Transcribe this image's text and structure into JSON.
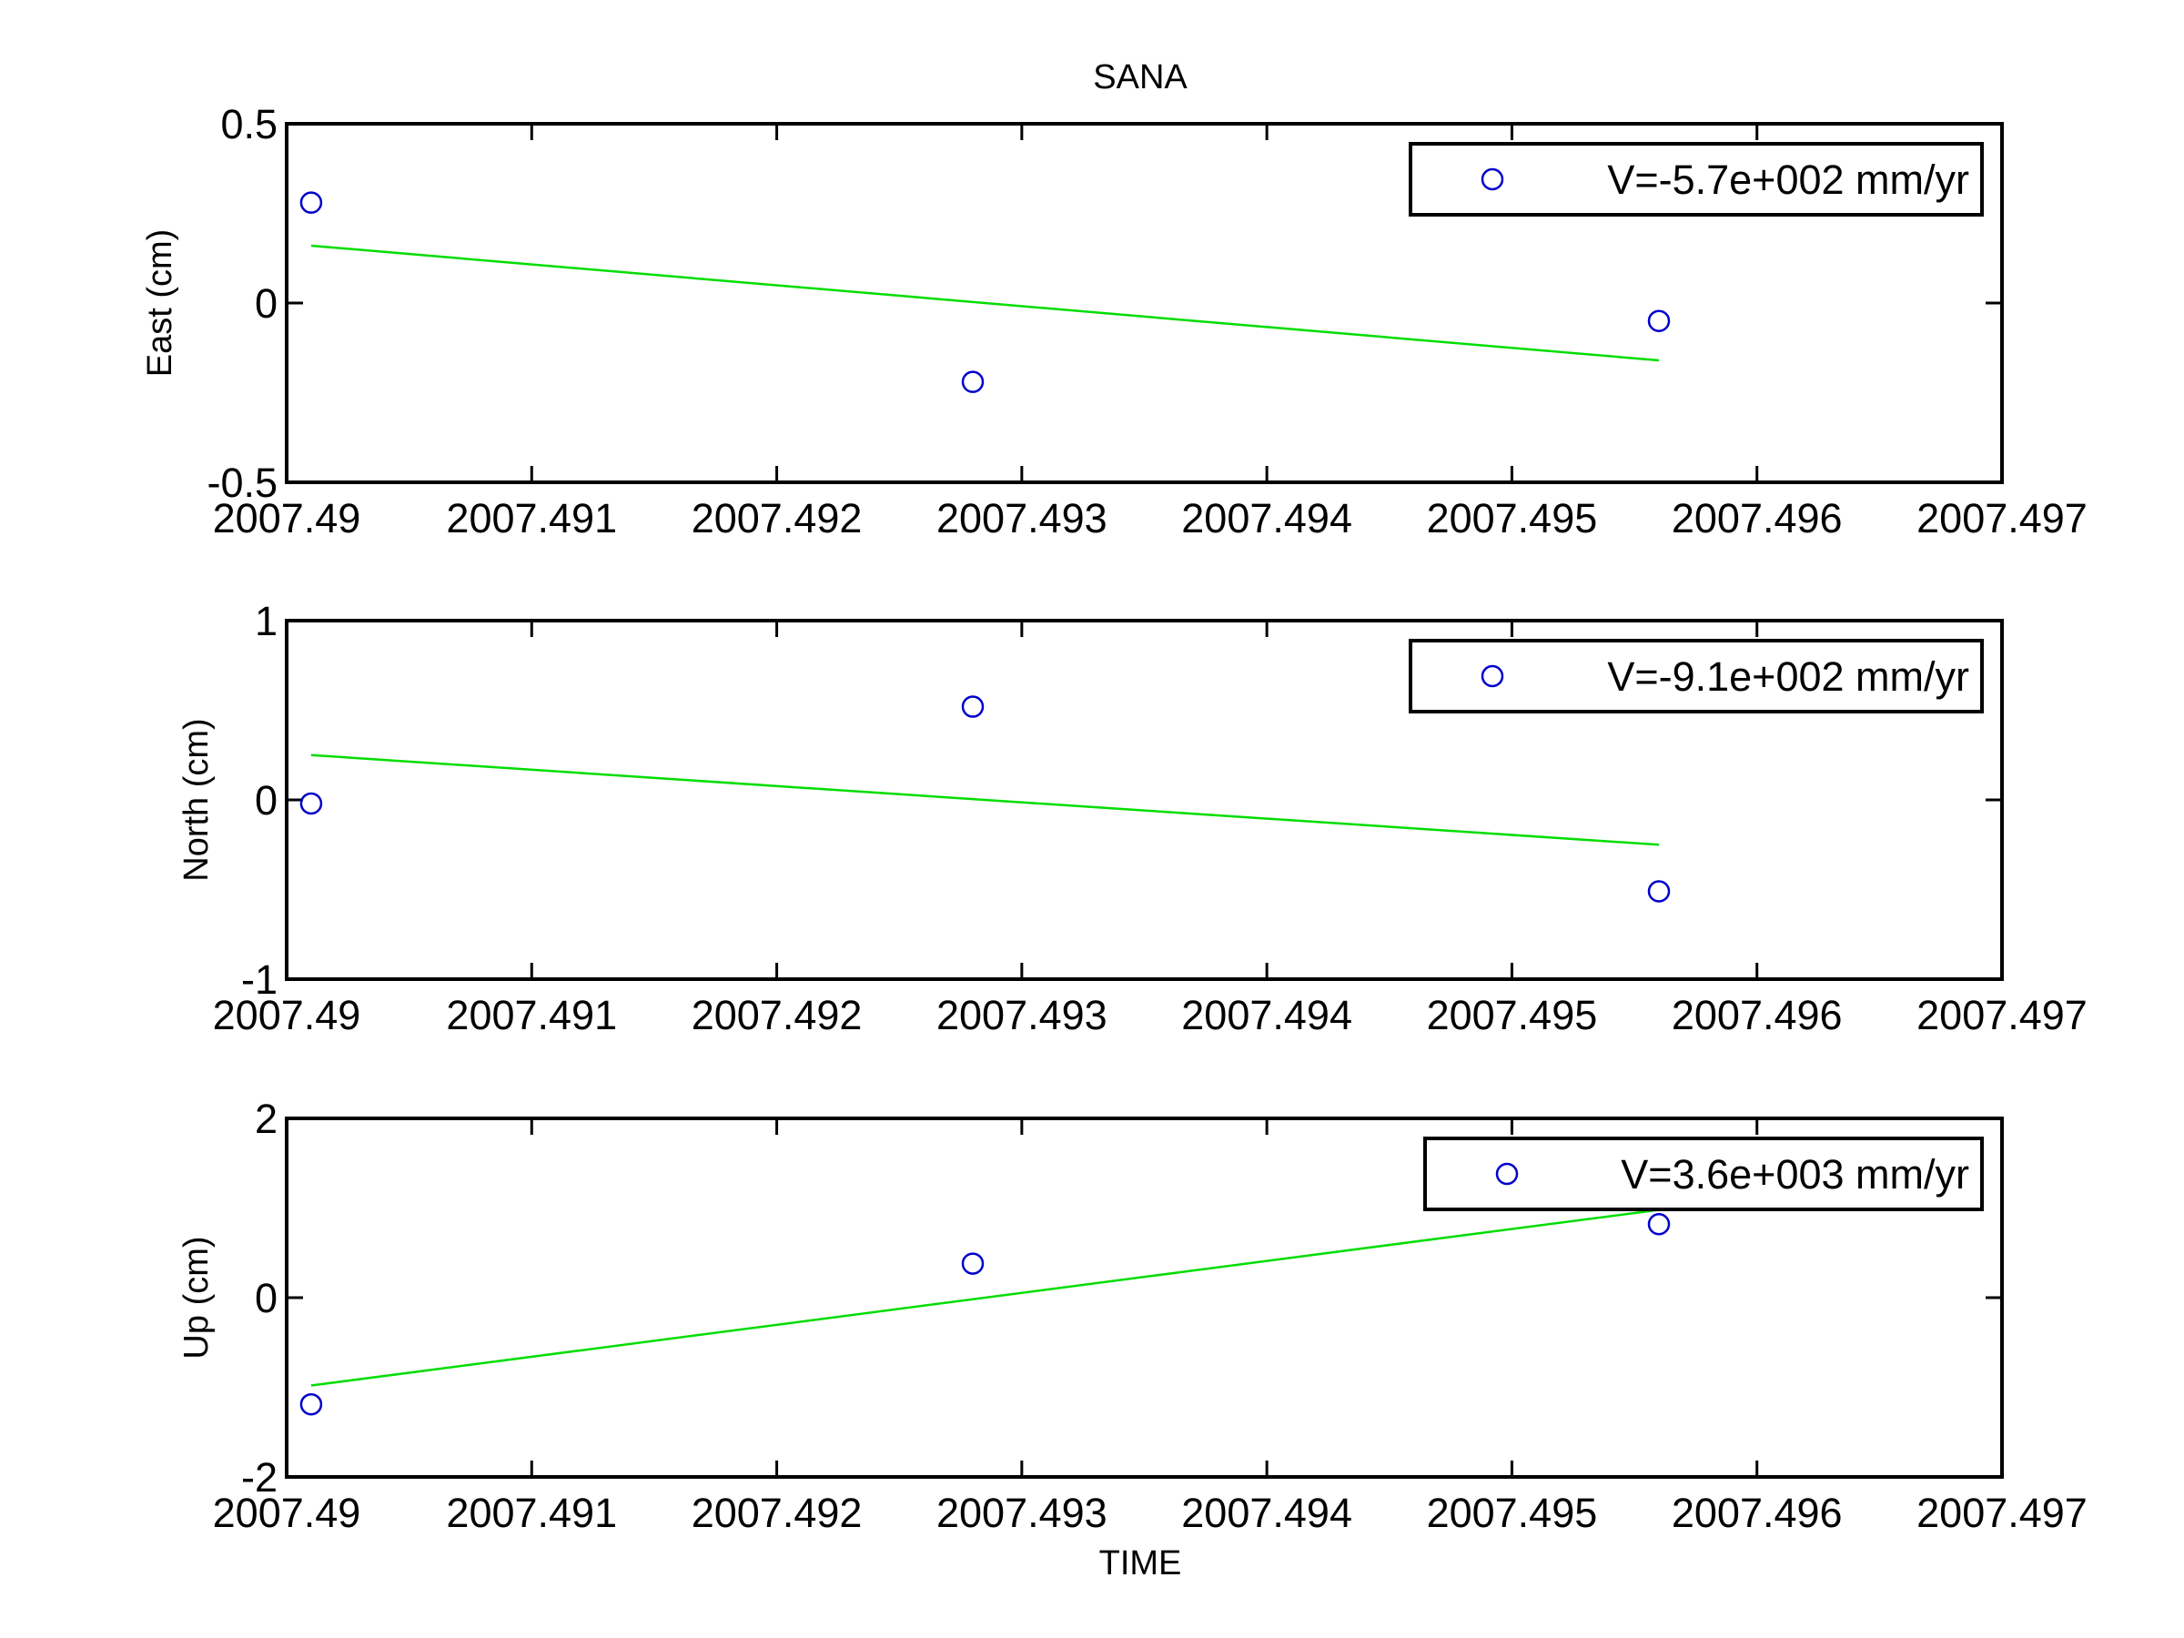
{
  "title": "SANA",
  "xlabel": "TIME",
  "colors": {
    "points": "#0000cc",
    "fit": "#00dd00",
    "axes": "#000000"
  },
  "chart_data": [
    {
      "type": "scatter",
      "ylabel": "East (cm)",
      "xlim": [
        2007.49,
        2007.497
      ],
      "ylim": [
        -0.5,
        0.5
      ],
      "xticks": [
        "2007.49",
        "2007.491",
        "2007.492",
        "2007.493",
        "2007.494",
        "2007.495",
        "2007.496",
        "2007.497"
      ],
      "xtick_values": [
        2007.49,
        2007.491,
        2007.492,
        2007.493,
        2007.494,
        2007.495,
        2007.496,
        2007.497
      ],
      "yticks": [
        "-0.5",
        "0",
        "0.5"
      ],
      "ytick_values": [
        -0.5,
        0,
        0.5
      ],
      "points": {
        "x": [
          2007.4901,
          2007.4928,
          2007.4956
        ],
        "y": [
          0.28,
          -0.22,
          -0.05
        ]
      },
      "fit_line": {
        "x": [
          2007.4901,
          2007.4956
        ],
        "y": [
          0.16,
          -0.16
        ]
      },
      "legend": {
        "label": "V=-5.7e+002 mm/yr",
        "placement": "top-right"
      }
    },
    {
      "type": "scatter",
      "ylabel": "North (cm)",
      "xlim": [
        2007.49,
        2007.497
      ],
      "ylim": [
        -1,
        1
      ],
      "xticks": [
        "2007.49",
        "2007.491",
        "2007.492",
        "2007.493",
        "2007.494",
        "2007.495",
        "2007.496",
        "2007.497"
      ],
      "xtick_values": [
        2007.49,
        2007.491,
        2007.492,
        2007.493,
        2007.494,
        2007.495,
        2007.496,
        2007.497
      ],
      "yticks": [
        "-1",
        "0",
        "1"
      ],
      "ytick_values": [
        -1,
        0,
        1
      ],
      "points": {
        "x": [
          2007.4901,
          2007.4928,
          2007.4956
        ],
        "y": [
          -0.02,
          0.52,
          -0.51
        ]
      },
      "fit_line": {
        "x": [
          2007.4901,
          2007.4956
        ],
        "y": [
          0.25,
          -0.25
        ]
      },
      "legend": {
        "label": "V=-9.1e+002 mm/yr",
        "placement": "top-right"
      }
    },
    {
      "type": "scatter",
      "ylabel": "Up (cm)",
      "xlim": [
        2007.49,
        2007.497
      ],
      "ylim": [
        -2,
        2
      ],
      "xticks": [
        "2007.49",
        "2007.491",
        "2007.492",
        "2007.493",
        "2007.494",
        "2007.495",
        "2007.496",
        "2007.497"
      ],
      "xtick_values": [
        2007.49,
        2007.491,
        2007.492,
        2007.493,
        2007.494,
        2007.495,
        2007.496,
        2007.497
      ],
      "yticks": [
        "-2",
        "0",
        "2"
      ],
      "ytick_values": [
        -2,
        0,
        2
      ],
      "points": {
        "x": [
          2007.4901,
          2007.4928,
          2007.4956
        ],
        "y": [
          -1.19,
          0.38,
          0.82
        ]
      },
      "fit_line": {
        "x": [
          2007.4901,
          2007.4956
        ],
        "y": [
          -0.98,
          0.98
        ]
      },
      "legend": {
        "label": "V=3.6e+003 mm/yr",
        "placement": "top-right"
      }
    }
  ]
}
